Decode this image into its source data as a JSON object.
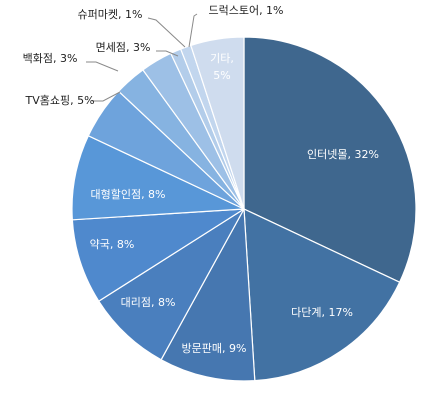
{
  "chart_data": {
    "type": "pie",
    "title": "",
    "start_angle_deg": 0,
    "direction": "clockwise",
    "legend": "none",
    "slices": [
      {
        "category": "인터넷몰",
        "value": 32,
        "label": "인터넷몰, 32%",
        "color": "#3f678e"
      },
      {
        "category": "다단계",
        "value": 17,
        "label": "다단계, 17%",
        "color": "#4272a3"
      },
      {
        "category": "방문판매",
        "value": 9,
        "label": "방문판매, 9%",
        "color": "#4677b0"
      },
      {
        "category": "대리점",
        "value": 8,
        "label": "대리점, 8%",
        "color": "#4a7fbe"
      },
      {
        "category": "약국",
        "value": 8,
        "label": "약국, 8%",
        "color": "#4f89cd"
      },
      {
        "category": "대형할인점",
        "value": 8,
        "label": "대형할인점, 8%",
        "color": "#5897d8"
      },
      {
        "category": "TV홈쇼핑",
        "value": 5,
        "label": "TV홈쇼핑, 5%",
        "color": "#6ea3dc"
      },
      {
        "category": "백화점",
        "value": 3,
        "label": "백화점, 3%",
        "color": "#86b3e1"
      },
      {
        "category": "면세점",
        "value": 3,
        "label": "면세점, 3%",
        "color": "#9dc0e6"
      },
      {
        "category": "슈퍼마켓",
        "value": 1,
        "label": "슈퍼마켓, 1%",
        "color": "#b3cdea"
      },
      {
        "category": "드럭스토어",
        "value": 1,
        "label": "드럭스토어, 1%",
        "color": "#c2d6ee"
      },
      {
        "category": "기타",
        "value": 5,
        "label": "기타,\n5%",
        "color": "#cfdcee"
      }
    ]
  }
}
